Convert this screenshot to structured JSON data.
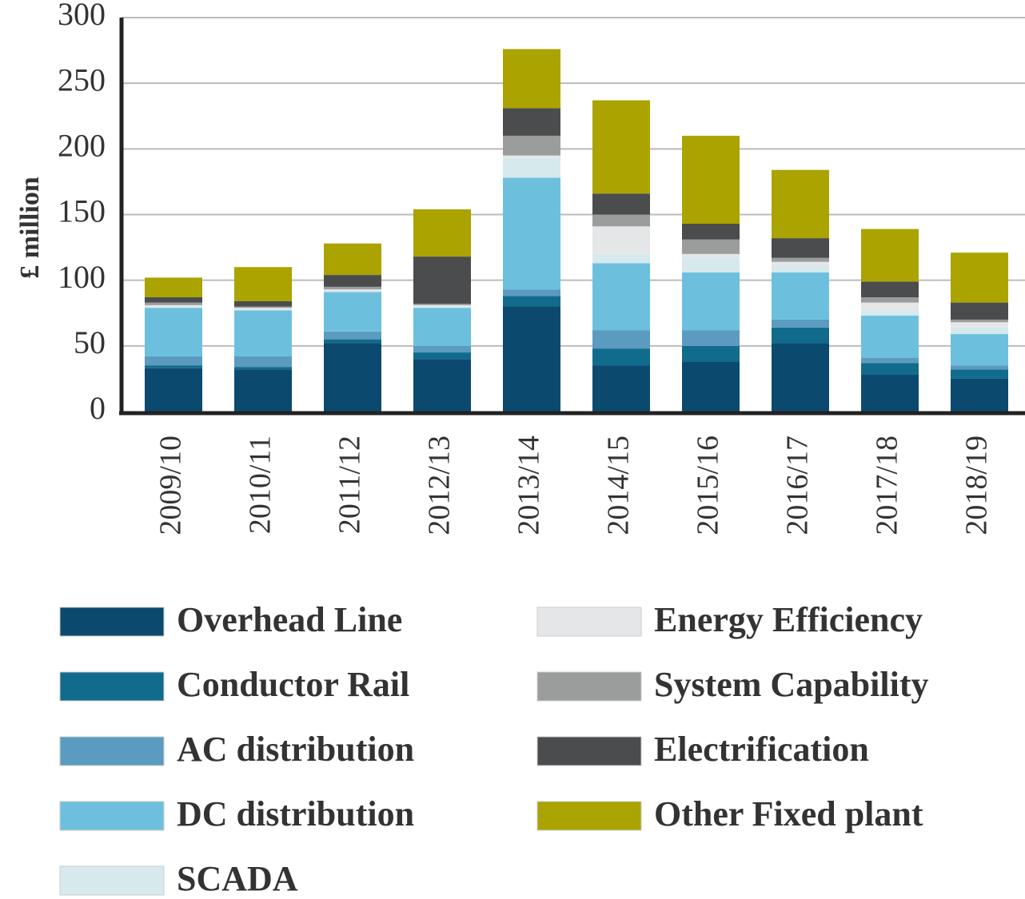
{
  "chart_data": {
    "type": "stacked_bar",
    "y_label": "£ million",
    "categories": [
      "2009/10",
      "2010/11",
      "2011/12",
      "2012/13",
      "2013/14",
      "2014/15",
      "2015/16",
      "2016/17",
      "2017/18",
      "2018/19"
    ],
    "series": [
      {
        "name": "Overhead Line",
        "color": "#0b4a6e",
        "values": [
          33,
          32,
          52,
          40,
          80,
          35,
          38,
          52,
          28,
          25
        ]
      },
      {
        "name": "Conductor Rail",
        "color": "#116b8c",
        "values": [
          2,
          2,
          3,
          5,
          8,
          13,
          12,
          12,
          9,
          7
        ]
      },
      {
        "name": "AC distribution",
        "color": "#5b9bc0",
        "values": [
          7,
          8,
          6,
          5,
          5,
          14,
          12,
          6,
          4,
          3
        ]
      },
      {
        "name": "DC distribution",
        "color": "#6cc0dd",
        "values": [
          37,
          35,
          30,
          29,
          85,
          51,
          44,
          36,
          32,
          24
        ]
      },
      {
        "name": "SCADA",
        "color": "#d6e9ed",
        "values": [
          1,
          1,
          1,
          1,
          15,
          7,
          11,
          5,
          4,
          5
        ]
      },
      {
        "name": "Energy Efficiency",
        "color": "#e4e6e8",
        "values": [
          1,
          1,
          1,
          1,
          2,
          21,
          3,
          3,
          6,
          4
        ]
      },
      {
        "name": "System Capability",
        "color": "#9a9d9b",
        "values": [
          2,
          1,
          2,
          1,
          15,
          9,
          11,
          3,
          4,
          2
        ]
      },
      {
        "name": "Electrification",
        "color": "#4a4c4e",
        "values": [
          4,
          4,
          9,
          36,
          21,
          16,
          12,
          15,
          12,
          13
        ]
      },
      {
        "name": "Other Fixed plant",
        "color": "#aaa300",
        "values": [
          15,
          26,
          24,
          36,
          45,
          71,
          67,
          52,
          40,
          38
        ]
      }
    ],
    "ylim": [
      0,
      300
    ],
    "yticks": [
      0,
      50,
      100,
      150,
      200,
      250,
      300
    ],
    "grid": true
  }
}
